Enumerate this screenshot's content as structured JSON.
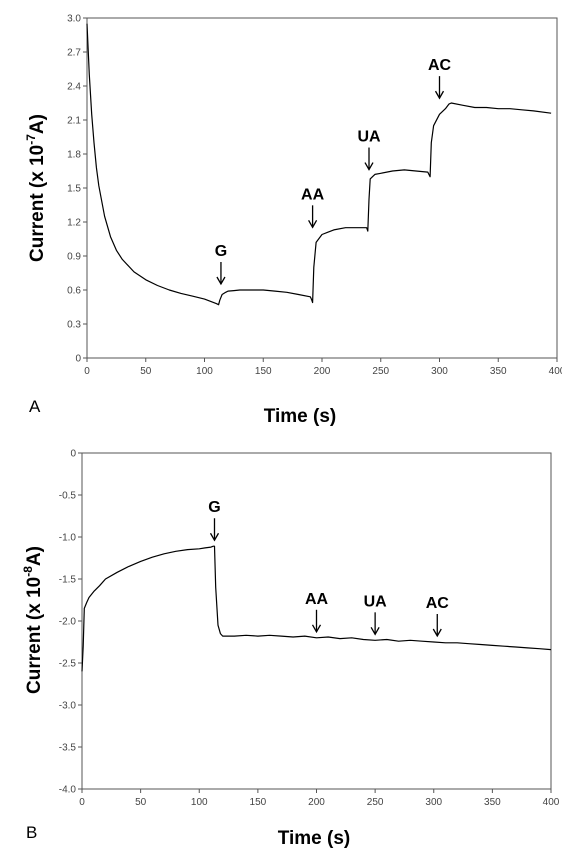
{
  "chart_data": [
    {
      "type": "line",
      "panel_label": "A",
      "xlabel": "Time (s)",
      "ylabel_main": "Current (x 10",
      "ylabel_exp": "-7",
      "ylabel_end": "A)",
      "xlim": [
        0,
        400
      ],
      "ylim": [
        0,
        3.0
      ],
      "xticks": [
        "0",
        "50",
        "100",
        "150",
        "200",
        "250",
        "300",
        "350",
        "400"
      ],
      "yticks": [
        "0",
        "0.3",
        "0.6",
        "0.9",
        "1.2",
        "1.5",
        "1.8",
        "2.1",
        "2.4",
        "2.7",
        "3.0"
      ],
      "series": [
        {
          "x": [
            0,
            2,
            4,
            6,
            8,
            10,
            15,
            20,
            25,
            30,
            40,
            50,
            60,
            70,
            80,
            90,
            100,
            105,
            110,
            112,
            113,
            115,
            118,
            120,
            125,
            130,
            140,
            150,
            160,
            170,
            180,
            190,
            191,
            192,
            193,
            195,
            200,
            205,
            210,
            220,
            230,
            238,
            239,
            240,
            241,
            243,
            245,
            250,
            260,
            270,
            280,
            290,
            291,
            292,
            293,
            295,
            300,
            305,
            308,
            310,
            320,
            330,
            340,
            350,
            360,
            370,
            380,
            395
          ],
          "y": [
            2.95,
            2.5,
            2.15,
            1.9,
            1.68,
            1.52,
            1.25,
            1.07,
            0.95,
            0.87,
            0.76,
            0.69,
            0.64,
            0.6,
            0.57,
            0.545,
            0.52,
            0.5,
            0.48,
            0.47,
            0.51,
            0.56,
            0.58,
            0.59,
            0.595,
            0.6,
            0.6,
            0.6,
            0.59,
            0.58,
            0.56,
            0.54,
            0.52,
            0.49,
            0.8,
            1.02,
            1.09,
            1.11,
            1.13,
            1.15,
            1.15,
            1.15,
            1.12,
            1.4,
            1.58,
            1.6,
            1.62,
            1.63,
            1.65,
            1.66,
            1.65,
            1.64,
            1.62,
            1.6,
            1.9,
            2.05,
            2.15,
            2.2,
            2.24,
            2.25,
            2.23,
            2.21,
            2.21,
            2.2,
            2.2,
            2.19,
            2.18,
            2.16
          ]
        }
      ],
      "annotations": [
        {
          "text": "G",
          "x": 114,
          "y": 0.6
        },
        {
          "text": "AA",
          "x": 192,
          "y": 1.1
        },
        {
          "text": "UA",
          "x": 240,
          "y": 1.61
        },
        {
          "text": "AC",
          "x": 300,
          "y": 2.24
        }
      ]
    },
    {
      "type": "line",
      "panel_label": "B",
      "xlabel": "Time (s)",
      "ylabel_main": "Current (x 10",
      "ylabel_exp": "-8",
      "ylabel_end": "A)",
      "xlim": [
        0,
        400
      ],
      "ylim": [
        -4.0,
        0
      ],
      "xticks": [
        "0",
        "50",
        "100",
        "150",
        "200",
        "250",
        "300",
        "350",
        "400"
      ],
      "yticks": [
        "0",
        "-0.5",
        "-1.0",
        "-1.5",
        "-2.0",
        "-2.5",
        "-3.0",
        "-3.5",
        "-4.0"
      ],
      "series": [
        {
          "x": [
            0,
            1,
            2,
            4,
            6,
            10,
            15,
            20,
            30,
            40,
            50,
            60,
            70,
            80,
            90,
            100,
            105,
            110,
            112,
            113,
            114,
            116,
            118,
            120,
            130,
            140,
            150,
            160,
            170,
            180,
            190,
            200,
            210,
            220,
            230,
            240,
            250,
            260,
            270,
            280,
            290,
            300,
            310,
            320,
            330,
            340,
            350,
            360,
            370,
            380,
            390,
            400
          ],
          "y": [
            -2.6,
            -2.3,
            -1.85,
            -1.78,
            -1.72,
            -1.65,
            -1.58,
            -1.5,
            -1.42,
            -1.35,
            -1.29,
            -1.24,
            -1.2,
            -1.17,
            -1.15,
            -1.14,
            -1.13,
            -1.12,
            -1.11,
            -1.11,
            -1.6,
            -2.05,
            -2.15,
            -2.18,
            -2.18,
            -2.17,
            -2.18,
            -2.17,
            -2.18,
            -2.19,
            -2.18,
            -2.2,
            -2.19,
            -2.21,
            -2.2,
            -2.22,
            -2.23,
            -2.22,
            -2.24,
            -2.23,
            -2.24,
            -2.25,
            -2.26,
            -2.26,
            -2.27,
            -2.28,
            -2.29,
            -2.3,
            -2.31,
            -2.32,
            -2.33,
            -2.34
          ]
        }
      ],
      "annotations": [
        {
          "text": "G",
          "x": 113,
          "y": -1.11
        },
        {
          "text": "AA",
          "x": 200,
          "y": -2.2
        },
        {
          "text": "UA",
          "x": 250,
          "y": -2.23
        },
        {
          "text": "AC",
          "x": 303,
          "y": -2.25
        }
      ]
    }
  ]
}
